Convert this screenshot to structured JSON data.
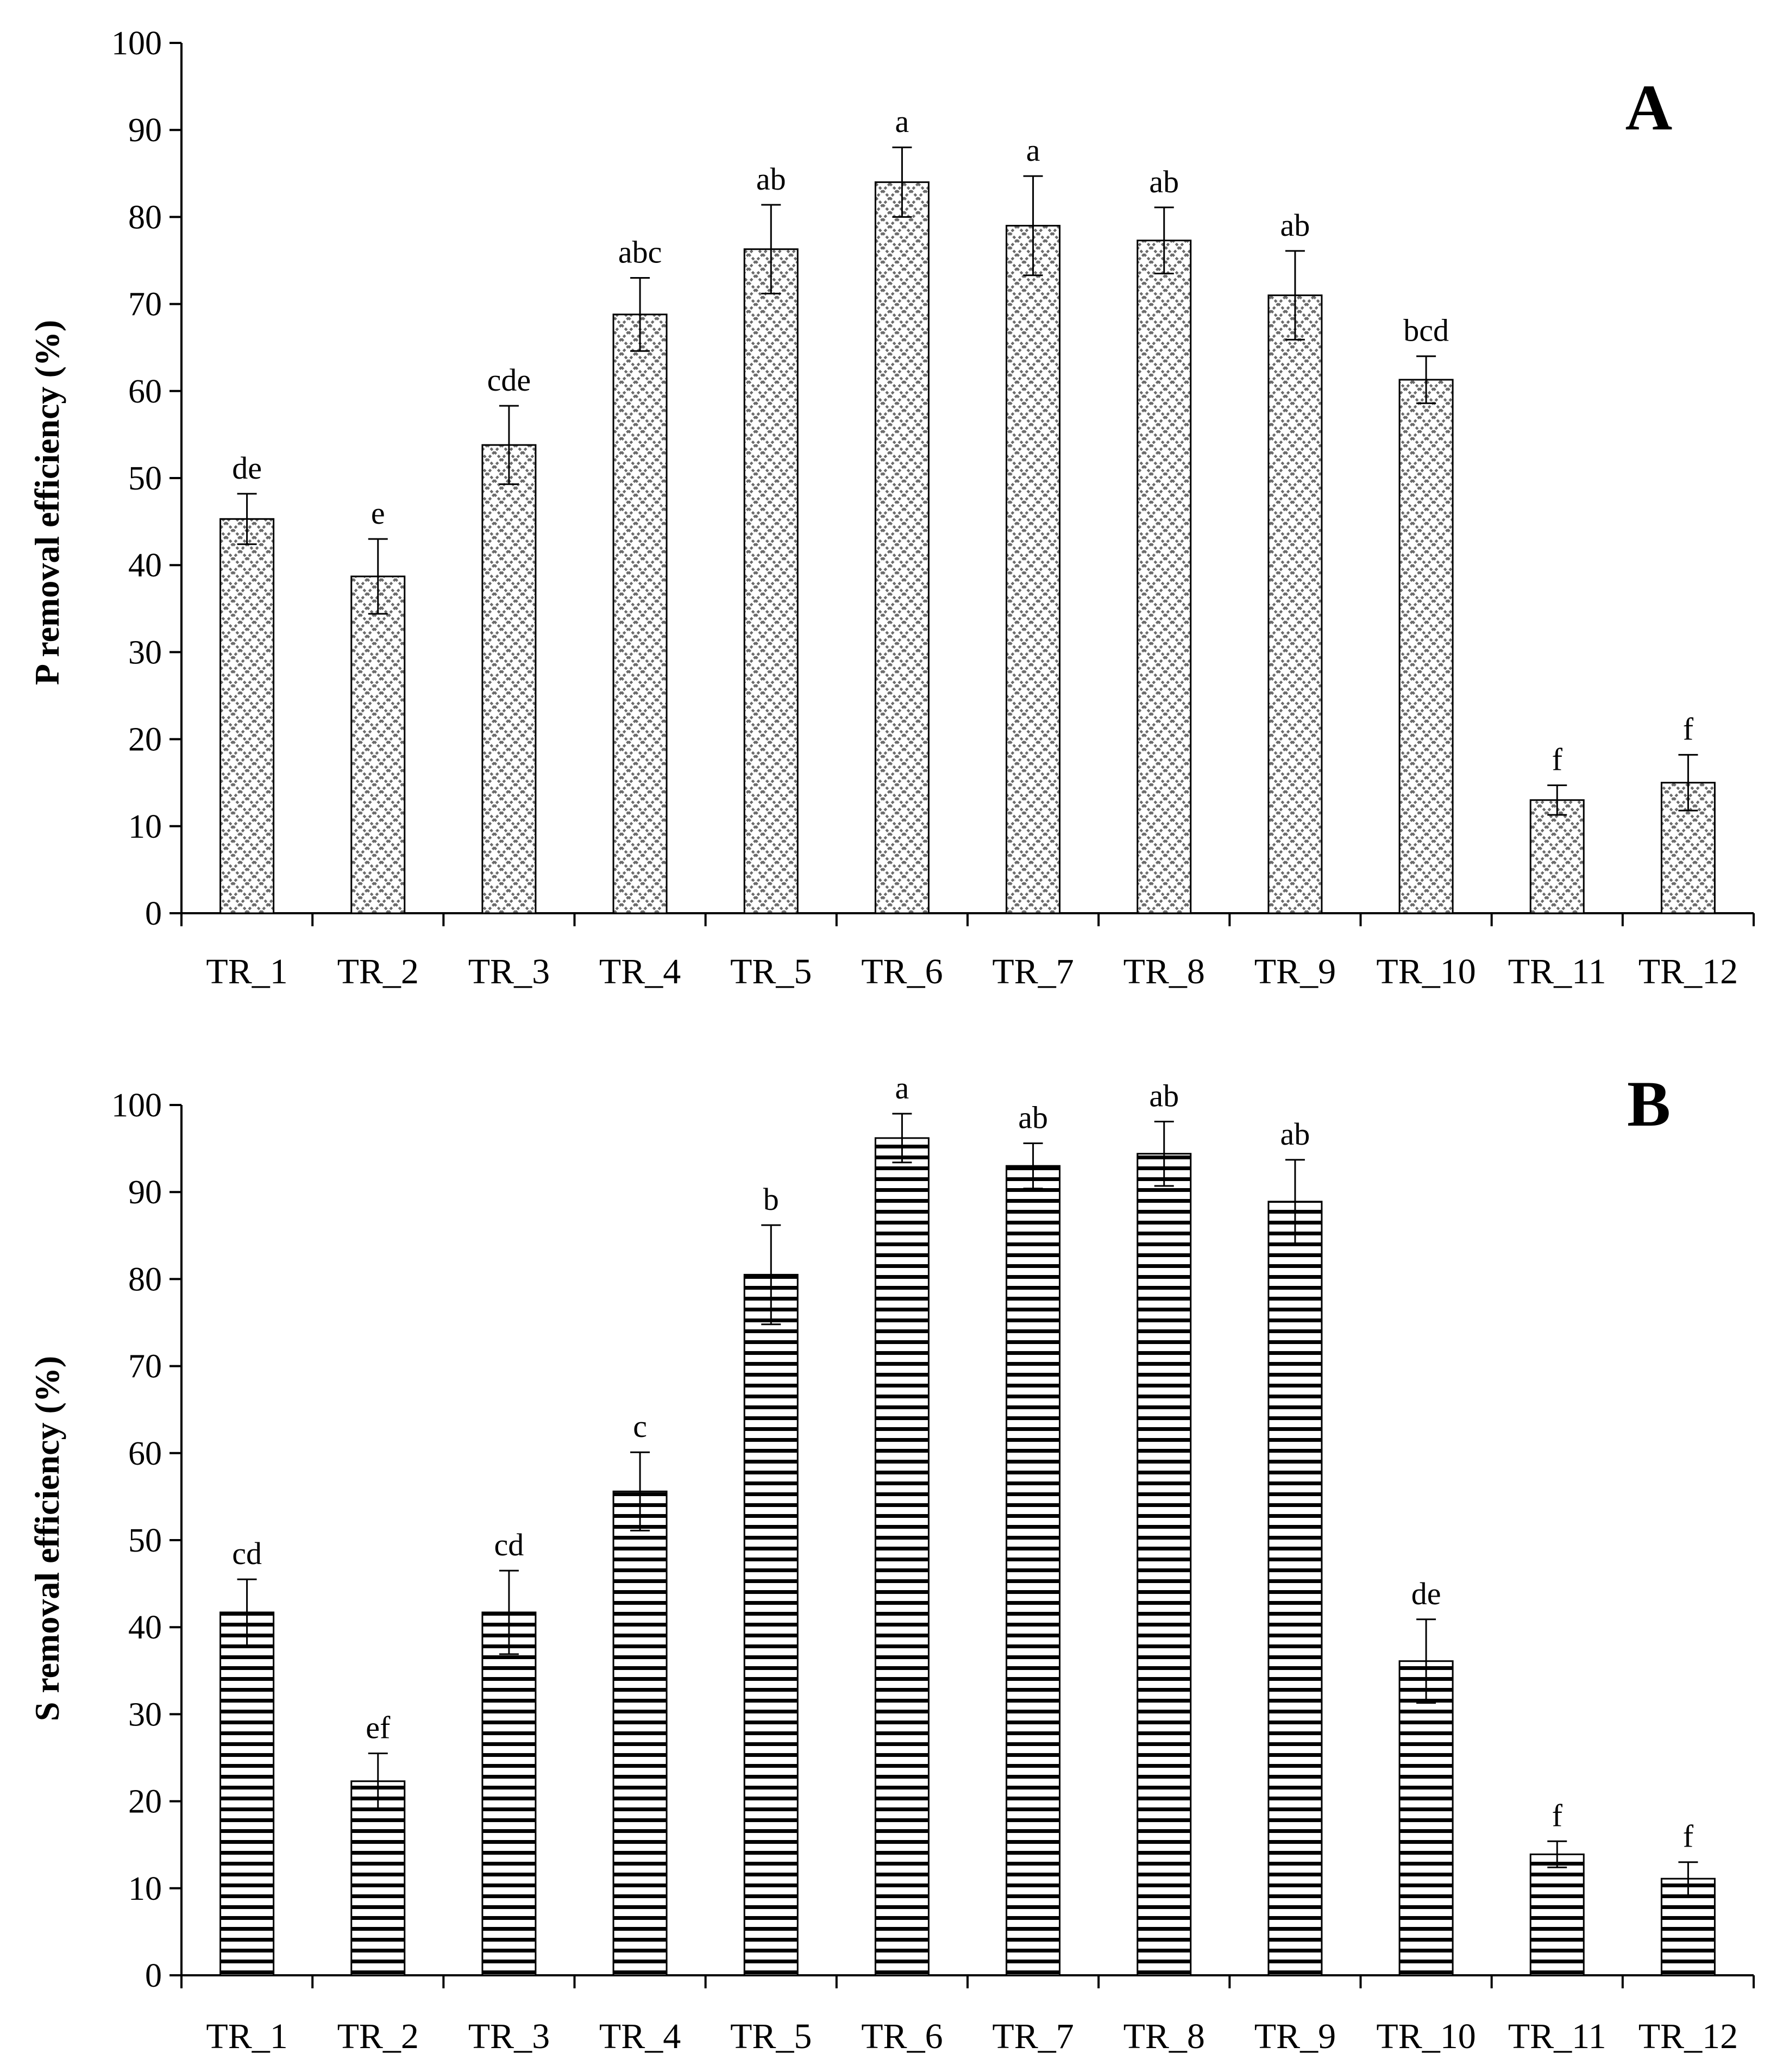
{
  "chart_data": [
    {
      "type": "bar",
      "panel": "A",
      "ylabel": "P removal efficiency  (%)",
      "ylim": [
        0,
        100
      ],
      "yticks": [
        0,
        10,
        20,
        30,
        40,
        50,
        60,
        70,
        80,
        90,
        100
      ],
      "grid": false,
      "pattern": "crosshatch",
      "categories": [
        "TR_1",
        "TR_2",
        "TR_3",
        "TR_4",
        "TR_5",
        "TR_6",
        "TR_7",
        "TR_8",
        "TR_9",
        "TR_10",
        "TR_11",
        "TR_12"
      ],
      "values": [
        45.3,
        38.7,
        53.8,
        68.8,
        76.3,
        84.0,
        79.0,
        77.3,
        71.0,
        61.3,
        13.0,
        15.0
      ],
      "errors": [
        2.9,
        4.3,
        4.5,
        4.2,
        5.1,
        4.0,
        5.7,
        3.8,
        5.1,
        2.7,
        1.7,
        3.2
      ],
      "annotations": [
        "de",
        "e",
        "cde",
        "abc",
        "ab",
        "a",
        "a",
        "ab",
        "ab",
        "bcd",
        "f",
        "f"
      ]
    },
    {
      "type": "bar",
      "panel": "B",
      "ylabel": "S removal efficiency  (%)",
      "ylim": [
        0,
        100
      ],
      "yticks": [
        0,
        10,
        20,
        30,
        40,
        50,
        60,
        70,
        80,
        90,
        100
      ],
      "grid": false,
      "pattern": "horizontal-lines",
      "categories": [
        "TR_1",
        "TR_2",
        "TR_3",
        "TR_4",
        "TR_5",
        "TR_6",
        "TR_7",
        "TR_8",
        "TR_9",
        "TR_10",
        "TR_11",
        "TR_12"
      ],
      "values": [
        41.7,
        22.3,
        41.7,
        55.6,
        80.5,
        96.2,
        93.0,
        94.4,
        88.9,
        36.1,
        13.9,
        11.1
      ],
      "errors": [
        3.8,
        3.2,
        4.8,
        4.5,
        5.7,
        2.8,
        2.6,
        3.7,
        4.8,
        4.8,
        1.5,
        1.9
      ],
      "annotations": [
        "cd",
        "ef",
        "cd",
        "c",
        "b",
        "a",
        "ab",
        "ab",
        "ab",
        "de",
        "f",
        "f"
      ]
    }
  ]
}
